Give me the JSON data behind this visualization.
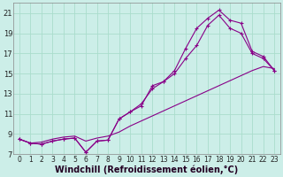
{
  "background_color": "#cceee8",
  "grid_color": "#aaddcc",
  "line_color": "#880088",
  "marker": "+",
  "xlabel": "Windchill (Refroidissement éolien,°C)",
  "xlabel_fontsize": 7,
  "xtick_fontsize": 5.5,
  "ytick_fontsize": 6,
  "xlim": [
    -0.5,
    23.5
  ],
  "ylim": [
    7,
    22
  ],
  "yticks": [
    7,
    9,
    11,
    13,
    15,
    17,
    19,
    21
  ],
  "xticks": [
    0,
    1,
    2,
    3,
    4,
    5,
    6,
    7,
    8,
    9,
    10,
    11,
    12,
    13,
    14,
    15,
    16,
    17,
    18,
    19,
    20,
    21,
    22,
    23
  ],
  "line1_x": [
    0,
    1,
    2,
    3,
    4,
    5,
    6,
    7,
    8,
    9,
    10,
    11,
    12,
    13,
    14,
    15,
    16,
    17,
    18,
    19,
    20,
    21,
    22,
    23
  ],
  "line1_y": [
    8.5,
    8.1,
    8.0,
    8.3,
    8.5,
    8.6,
    7.2,
    8.3,
    8.4,
    10.5,
    11.2,
    12.0,
    13.5,
    14.2,
    15.3,
    17.5,
    19.5,
    20.5,
    21.3,
    20.3,
    20.0,
    17.2,
    16.7,
    15.3
  ],
  "line2_x": [
    0,
    1,
    2,
    3,
    4,
    5,
    6,
    7,
    8,
    9,
    10,
    11,
    12,
    13,
    14,
    15,
    16,
    17,
    18,
    19,
    20,
    21,
    22,
    23
  ],
  "line2_y": [
    8.5,
    8.1,
    8.0,
    8.3,
    8.5,
    8.6,
    7.2,
    8.3,
    8.4,
    10.5,
    11.2,
    11.8,
    13.8,
    14.2,
    15.0,
    16.5,
    17.8,
    19.8,
    20.8,
    19.5,
    19.0,
    17.0,
    16.5,
    15.3
  ],
  "line3_x": [
    0,
    1,
    2,
    3,
    4,
    5,
    6,
    7,
    8,
    9,
    10,
    11,
    12,
    13,
    14,
    15,
    16,
    17,
    18,
    19,
    20,
    21,
    22,
    23
  ],
  "line3_y": [
    8.5,
    8.1,
    8.2,
    8.5,
    8.7,
    8.8,
    8.3,
    8.6,
    8.8,
    9.2,
    9.8,
    10.3,
    10.8,
    11.3,
    11.8,
    12.3,
    12.8,
    13.3,
    13.8,
    14.3,
    14.8,
    15.3,
    15.7,
    15.5
  ]
}
